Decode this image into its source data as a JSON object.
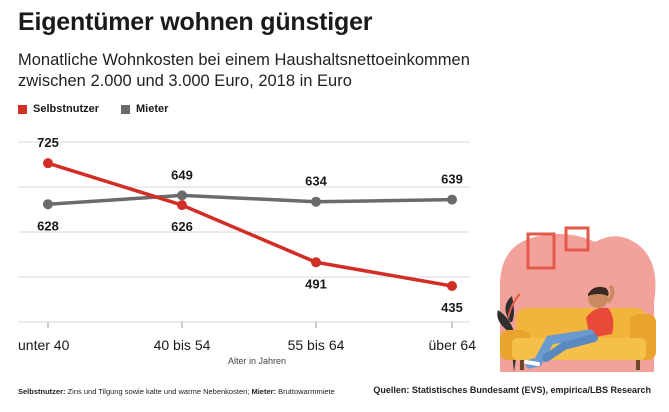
{
  "title": "Eigentümer wohnen günstiger",
  "subtitle": "Monatliche Wohnkosten bei einem Haushaltsnettoeinkommen zwischen 2.000 und 3.000 Euro, 2018 in Euro",
  "legend": [
    {
      "name": "Selbstnutzer",
      "color": "#d12e26"
    },
    {
      "name": "Mieter",
      "color": "#6b6b6b"
    }
  ],
  "footnote": {
    "label1": "Selbstnutzer:",
    "text1": " Zins und Tilgung sowie kalte und warme Nebenkosten; ",
    "label2": "Mieter:",
    "text2": " Bruttowarmmiete"
  },
  "source": "Quellen: Statistisches Bundesamt (EVS), empirica/LBS Research",
  "chart_data": {
    "type": "line",
    "categories": [
      "unter 40",
      "40 bis 54",
      "55 bis 64",
      "über 64"
    ],
    "xlabel": "Alter in Jahren",
    "ylabel": "",
    "ylim": [
      350,
      775
    ],
    "grid": true,
    "legend_position": "top-left",
    "series": [
      {
        "name": "Selbstnutzer",
        "color": "#d12e26",
        "values": [
          725,
          626,
          491,
          435
        ],
        "label_position": [
          "above",
          "below",
          "below",
          "below"
        ]
      },
      {
        "name": "Mieter",
        "color": "#6b6b6b",
        "values": [
          628,
          649,
          634,
          639
        ],
        "label_position": [
          "below",
          "above",
          "above",
          "above"
        ]
      }
    ]
  }
}
